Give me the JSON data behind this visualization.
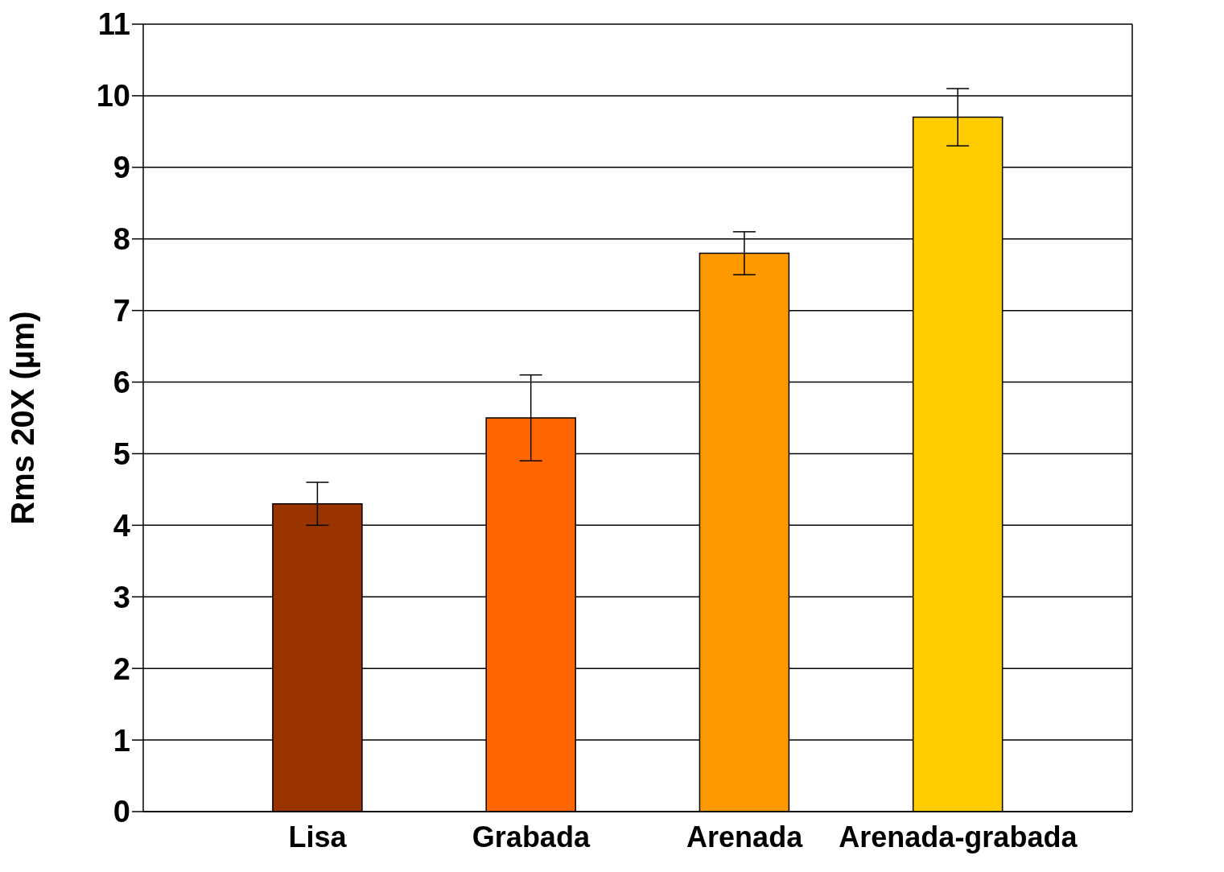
{
  "chart_data": {
    "type": "bar",
    "ylabel": "Rms 20X (µm)",
    "categories": [
      "Lisa",
      "Grabada",
      "Arenada",
      "Arenada-grabada"
    ],
    "values": [
      4.3,
      5.5,
      7.8,
      9.7
    ],
    "errors": [
      0.3,
      0.6,
      0.3,
      0.4
    ],
    "colors": [
      "#993300",
      "#ff6600",
      "#ff9900",
      "#ffcc00"
    ],
    "ylim": [
      0,
      11
    ],
    "yticks": [
      0,
      1,
      2,
      3,
      4,
      5,
      6,
      7,
      8,
      9,
      10,
      11
    ],
    "grid": "y",
    "legend": false
  }
}
